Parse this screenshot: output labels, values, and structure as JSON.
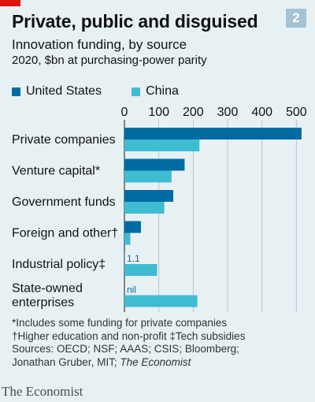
{
  "header": {
    "title": "Private, public and disguised",
    "chart_number": "2",
    "subtitle": "Innovation funding, by source",
    "units": "2020, $bn at purchasing-power parity"
  },
  "colors": {
    "us": "#006ba2",
    "china": "#3ebcd2",
    "accent": "#e3120b",
    "badge": "#a5c3d4"
  },
  "chart_data": {
    "type": "bar",
    "orientation": "horizontal",
    "categories": [
      [
        "Private companies"
      ],
      [
        "Venture capital*"
      ],
      [
        "Government funds"
      ],
      [
        "Foreign and other†"
      ],
      [
        "Industrial policy‡"
      ],
      [
        "State-owned",
        "enterprises"
      ]
    ],
    "series": [
      {
        "name": "United States",
        "color": "#006ba2",
        "values": [
          515,
          175,
          142,
          48,
          1.1,
          0
        ]
      },
      {
        "name": "China",
        "color": "#3ebcd2",
        "values": [
          218,
          137,
          116,
          17,
          95,
          212
        ]
      }
    ],
    "data_labels": [
      {
        "series": 0,
        "index": 4,
        "text": "1.1"
      },
      {
        "series": 0,
        "index": 5,
        "text": "nil"
      }
    ],
    "xlim": [
      0,
      520
    ],
    "xticks": [
      "0",
      "100",
      "200",
      "300",
      "400",
      "500"
    ],
    "tick_values": [
      0,
      100,
      200,
      300,
      400,
      500
    ],
    "xlabel": "",
    "ylabel": "",
    "grid": true,
    "legend": "top"
  },
  "footnotes": [
    "*Includes some funding for private companies",
    "†Higher education and non-profit  ‡Tech subsidies",
    "Sources: OECD; NSF; AAAS; CSIS; Bloomberg;"
  ],
  "sources_last": {
    "text": "Jonathan Gruber, MIT; ",
    "italic": "The Economist"
  },
  "brand": "The Economist"
}
